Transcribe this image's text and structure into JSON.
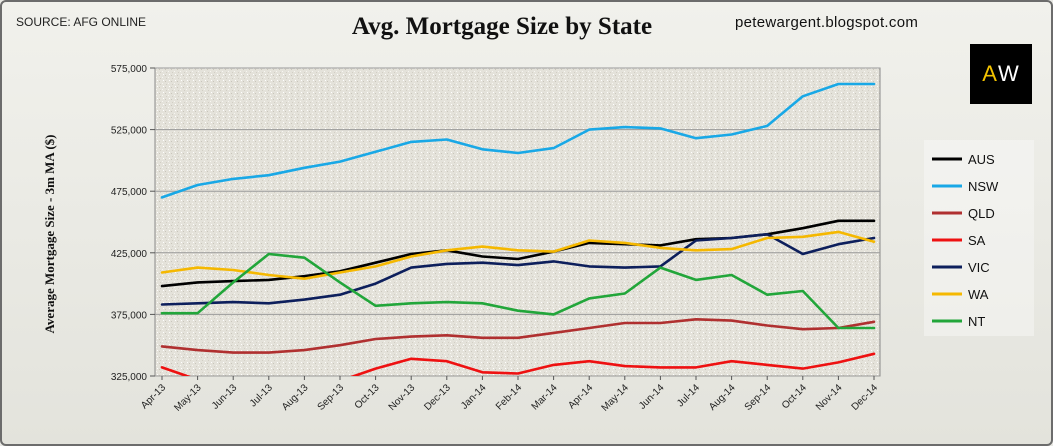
{
  "header": {
    "source": "SOURCE: AFG ONLINE",
    "blog": "petewargent.blogspot.com",
    "logo_left": "A",
    "logo_right": "W"
  },
  "chart_data": {
    "type": "line",
    "title": "Avg. Mortgage Size by State",
    "ylabel": "Average Mortgage Size - 3m MA ($)",
    "xlabel": "",
    "ylim": [
      325000,
      575000
    ],
    "yticks": [
      325000,
      375000,
      425000,
      475000,
      525000,
      575000
    ],
    "ytick_labels": [
      "325,000",
      "375,000",
      "425,000",
      "475,000",
      "525,000",
      "575,000"
    ],
    "grid": true,
    "legend_position": "right",
    "categories": [
      "Apr-13",
      "May-13",
      "Jun-13",
      "Jul-13",
      "Aug-13",
      "Sep-13",
      "Oct-13",
      "Nov-13",
      "Dec-13",
      "Jan-14",
      "Feb-14",
      "Mar-14",
      "Apr-14",
      "May-14",
      "Jun-14",
      "Jul-14",
      "Aug-14",
      "Sep-14",
      "Oct-14",
      "Nov-14",
      "Dec-14"
    ],
    "series": [
      {
        "name": "AUS",
        "color": "#000000",
        "values": [
          398000,
          401000,
          402000,
          403000,
          406000,
          410000,
          417000,
          424000,
          427000,
          422000,
          420000,
          426000,
          433000,
          432000,
          431000,
          436000,
          437000,
          440000,
          445000,
          451000,
          451000
        ]
      },
      {
        "name": "NSW",
        "color": "#19a8e6",
        "values": [
          470000,
          480000,
          485000,
          488000,
          494000,
          499000,
          507000,
          515000,
          517000,
          509000,
          506000,
          510000,
          525000,
          527000,
          526000,
          518000,
          521000,
          528000,
          552000,
          562000,
          562000
        ]
      },
      {
        "name": "QLD",
        "color": "#b03030",
        "values": [
          349000,
          346000,
          344000,
          344000,
          346000,
          350000,
          355000,
          357000,
          358000,
          356000,
          356000,
          360000,
          364000,
          368000,
          368000,
          371000,
          370000,
          366000,
          363000,
          364000,
          369000
        ]
      },
      {
        "name": "SA",
        "color": "#ee1111",
        "values": [
          332000,
          322000,
          318000,
          315000,
          315000,
          321000,
          331000,
          339000,
          337000,
          328000,
          327000,
          334000,
          337000,
          333000,
          332000,
          332000,
          337000,
          334000,
          331000,
          336000,
          343000
        ]
      },
      {
        "name": "VIC",
        "color": "#0d1f5c",
        "values": [
          383000,
          384000,
          385000,
          384000,
          387000,
          391000,
          400000,
          413000,
          416000,
          417000,
          415000,
          418000,
          414000,
          413000,
          414000,
          435000,
          437000,
          440000,
          424000,
          432000,
          437000
        ]
      },
      {
        "name": "WA",
        "color": "#f5b800",
        "values": [
          409000,
          413000,
          411000,
          407000,
          404000,
          409000,
          414000,
          422000,
          427000,
          430000,
          427000,
          426000,
          435000,
          433000,
          429000,
          427000,
          428000,
          437000,
          438000,
          442000,
          434000
        ]
      },
      {
        "name": "NT",
        "color": "#22a63a",
        "values": [
          376000,
          376000,
          401000,
          424000,
          421000,
          401000,
          382000,
          384000,
          385000,
          384000,
          378000,
          375000,
          388000,
          392000,
          413000,
          403000,
          407000,
          391000,
          394000,
          364000,
          364000
        ]
      }
    ]
  }
}
